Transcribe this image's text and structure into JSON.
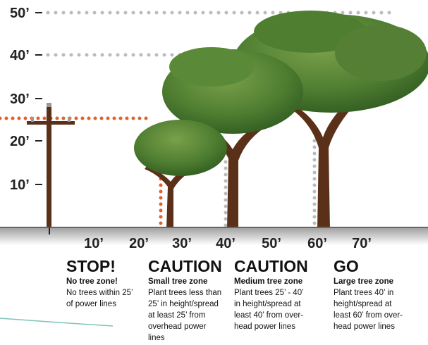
{
  "y_labels": [
    "50’",
    "40’",
    "30’",
    "20’",
    "10’"
  ],
  "x_labels": [
    "10’",
    "20’",
    "30’",
    "40’",
    "50’",
    "60’",
    "70’"
  ],
  "zones": [
    {
      "heading": "STOP!",
      "subheading": "No tree zone!",
      "lines": [
        "No trees within 25’",
        "of power lines"
      ]
    },
    {
      "heading": "CAUTION",
      "subheading": "Small tree zone",
      "lines": [
        "Plant trees less than",
        "25’ in height/spread",
        "at least 25’ from",
        "overhead power",
        "lines"
      ]
    },
    {
      "heading": "CAUTION",
      "subheading": "Medium tree zone",
      "lines": [
        "Plant trees 25’ - 40’",
        "in height/spread at",
        "least 40’ from over-",
        "head power lines"
      ]
    },
    {
      "heading": "GO",
      "subheading": "Large tree zone",
      "lines": [
        "Plant trees 40’ in",
        "height/spread at",
        "least 60’ from over-",
        "head power lines"
      ]
    }
  ]
}
